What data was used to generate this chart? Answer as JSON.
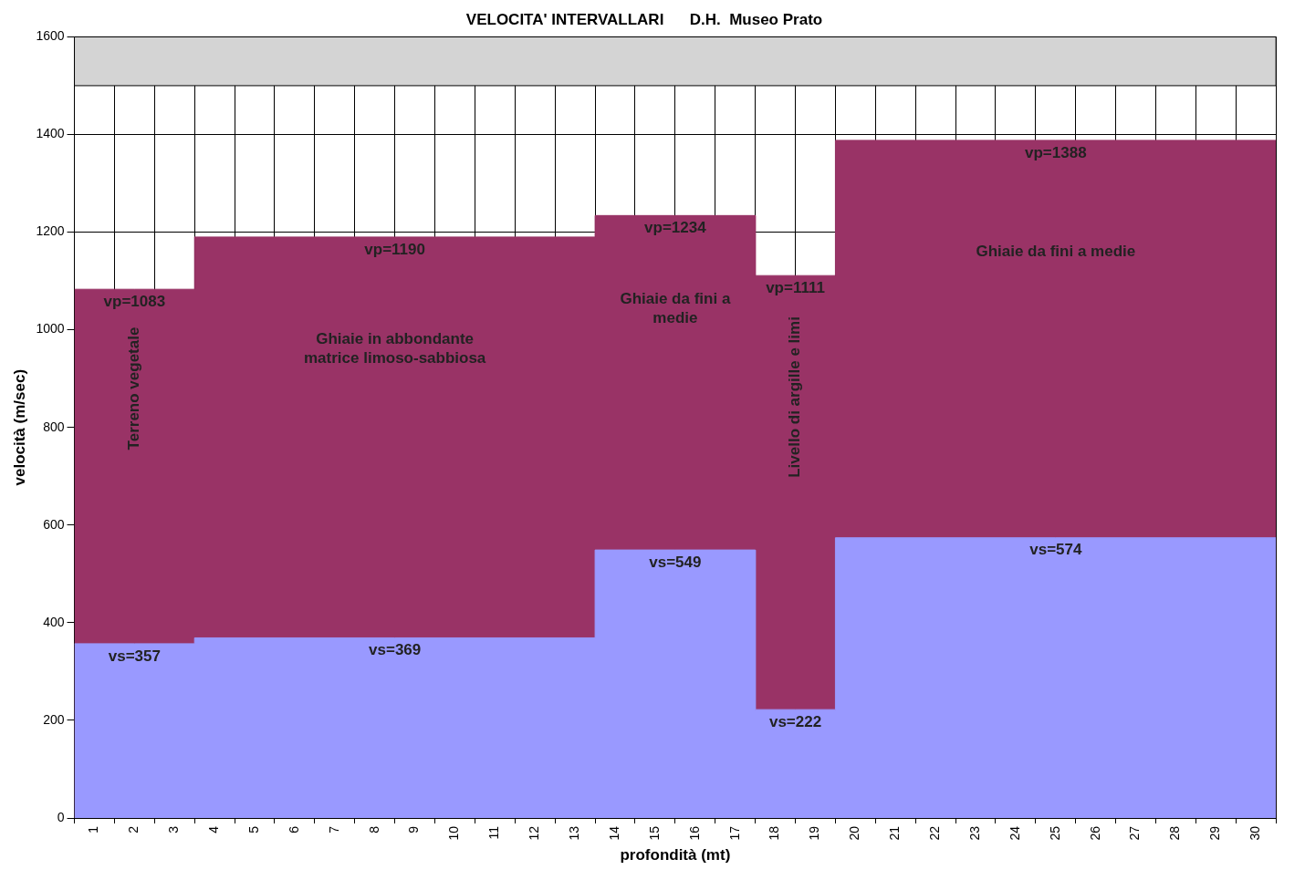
{
  "chart_data": {
    "type": "area",
    "title": "VELOCITA' INTERVALLARI      D.H.  Museo Prato",
    "xlabel": "profondità (mt)",
    "ylabel": "velocità (m/sec)",
    "x": [
      0.5,
      2,
      3.5,
      3.5,
      8.5,
      13.5,
      13.5,
      15.5,
      17.5,
      17.5,
      18.5,
      19.5,
      19.5,
      25,
      30.5
    ],
    "series": [
      {
        "color": "#993366",
        "values": [
          1083,
          1083,
          1083,
          1190,
          1190,
          1190,
          1234,
          1234,
          1234,
          1111,
          1111,
          1111,
          1388,
          1388,
          1388
        ],
        "value_labels": [
          null,
          "vp=1083",
          null,
          null,
          "vp=1190",
          null,
          null,
          "vp=1234",
          null,
          null,
          "vp=1111",
          null,
          null,
          "vp=1388",
          null
        ]
      },
      {
        "color": "#9999ff",
        "values": [
          357,
          357,
          357,
          369,
          369,
          369,
          549,
          549,
          549,
          222,
          222,
          222,
          574,
          574,
          574
        ],
        "value_labels": [
          null,
          "vs=357",
          null,
          null,
          "vs=369",
          null,
          null,
          "vs=549",
          null,
          null,
          "vs=222",
          null,
          null,
          "vs=574",
          null
        ]
      }
    ],
    "xlim": [
      0.5,
      30.5
    ],
    "xticks": [
      {
        "value": 0.5,
        "label": null
      },
      1,
      {
        "value": 1.5,
        "label": null
      },
      2,
      {
        "value": 2.5,
        "label": null
      },
      3,
      {
        "value": 3.5,
        "label": null
      },
      4,
      {
        "value": 4.5,
        "label": null
      },
      5,
      {
        "value": 5.5,
        "label": null
      },
      6,
      {
        "value": 6.5,
        "label": null
      },
      7,
      {
        "value": 7.5,
        "label": null
      },
      8,
      {
        "value": 8.5,
        "label": null
      },
      9,
      {
        "value": 9.5,
        "label": null
      },
      10,
      {
        "value": 10.5,
        "label": null
      },
      11,
      {
        "value": 11.5,
        "label": null
      },
      12,
      {
        "value": 12.5,
        "label": null
      },
      13,
      {
        "value": 13.5,
        "label": null
      },
      14,
      {
        "value": 14.5,
        "label": null
      },
      15,
      {
        "value": 15.5,
        "label": null
      },
      16,
      {
        "value": 16.5,
        "label": null
      },
      17,
      {
        "value": 17.5,
        "label": null
      },
      18,
      {
        "value": 18.5,
        "label": null
      },
      19,
      {
        "value": 19.5,
        "label": null
      },
      20,
      {
        "value": 20.5,
        "label": null
      },
      21,
      {
        "value": 21.5,
        "label": null
      },
      22,
      {
        "value": 22.5,
        "label": null
      },
      23,
      {
        "value": 23.5,
        "label": null
      },
      24,
      {
        "value": 24.5,
        "label": null
      },
      25,
      {
        "value": 25.5,
        "label": null
      },
      26,
      {
        "value": 26.5,
        "label": null
      },
      27,
      {
        "value": 27.5,
        "label": null
      },
      28,
      {
        "value": 28.5,
        "label": null
      },
      29,
      {
        "value": 29.5,
        "label": null
      },
      30,
      {
        "value": 30.5,
        "label": null
      }
    ],
    "ylim": [
      0,
      1600
    ],
    "yticks": [
      0,
      200,
      400,
      600,
      800,
      1000,
      1200,
      1400,
      1600
    ],
    "grid": true,
    "legend": false,
    "marker": "none",
    "bands": [
      {
        "axis": "y",
        "from": 1500,
        "to": 1600,
        "color": "#d4d4d4"
      }
    ],
    "annotations": [
      "Terreno vegetale",
      "Ghiaie in abbondante\nmatrice limoso-sabbiosa",
      "Ghiaie da fini a\nmedie",
      "Livello di argille e limi",
      "Ghiaie da fini a medie"
    ]
  }
}
